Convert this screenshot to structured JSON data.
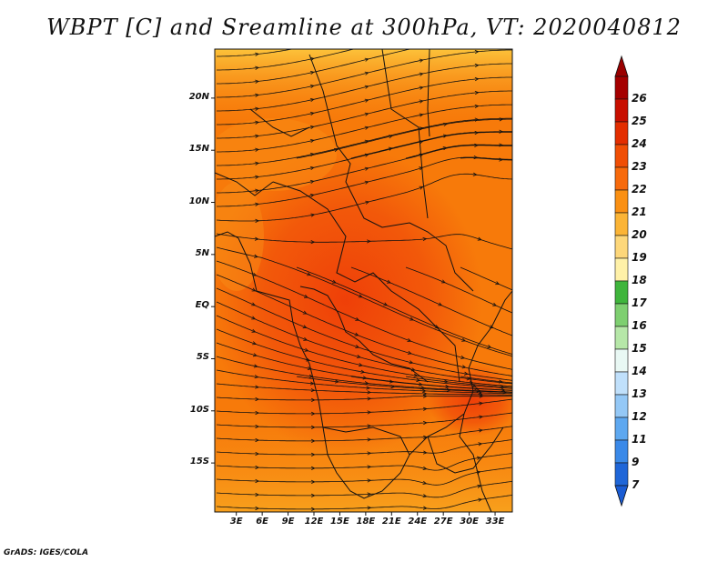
{
  "title": "WBPT [C] and Sreamline at 300hPa, VT: 2020040812",
  "credit": "GrADS: IGES/COLA",
  "lat_labels": [
    "20N",
    "15N",
    "10N",
    "5N",
    "EQ",
    "5S",
    "10S",
    "15S"
  ],
  "lat_values": [
    20,
    15,
    10,
    5,
    0,
    -5,
    -10,
    -15
  ],
  "lon_labels": [
    "3E",
    "6E",
    "9E",
    "12E",
    "15E",
    "18E",
    "21E",
    "24E",
    "27E",
    "30E",
    "33E"
  ],
  "lon_values": [
    3,
    6,
    9,
    12,
    15,
    18,
    21,
    24,
    27,
    30,
    33
  ],
  "colorbar": {
    "labels": [
      "26",
      "25",
      "24",
      "23",
      "22",
      "21",
      "20",
      "19",
      "18",
      "17",
      "16",
      "15",
      "14",
      "13",
      "12",
      "11",
      "9",
      "7"
    ],
    "colors": [
      "#a50000",
      "#c80f00",
      "#e32e00",
      "#f04e05",
      "#f76a0c",
      "#fa9013",
      "#fbb436",
      "#fdd77a",
      "#fff1a8",
      "#3fb53c",
      "#7ecf70",
      "#b6e7a8",
      "#e9f8f4",
      "#c0e0fb",
      "#94c8f6",
      "#5ea8f0",
      "#3a89e8",
      "#1f66d8"
    ]
  },
  "colors": {
    "map_base": "#f77a0a",
    "warm_core": "#f0440a",
    "cool_north": "#fbb02a",
    "cool_south": "#f6a21e",
    "streamline": "#111111"
  }
}
